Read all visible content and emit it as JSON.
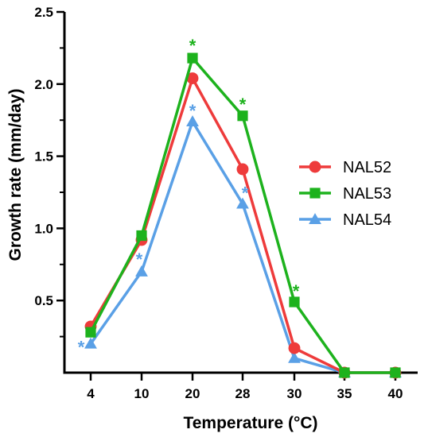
{
  "chart_data": {
    "type": "line",
    "xlabel": "Temperature (°C)",
    "ylabel": "Growth rate (mm/day)",
    "categories": [
      "4",
      "10",
      "20",
      "28",
      "30",
      "35",
      "40"
    ],
    "ylim": [
      0,
      2.5
    ],
    "yticks": [
      "0.5",
      "1.0",
      "1.5",
      "2.0",
      "2.5"
    ],
    "legend_position": "right",
    "grid": false,
    "series": [
      {
        "name": "NAL52",
        "marker": "circle",
        "color": "#ee3b3b",
        "values": [
          0.32,
          0.92,
          2.04,
          1.41,
          0.17,
          0.0,
          0.0
        ]
      },
      {
        "name": "NAL53",
        "marker": "square",
        "color": "#1db21d",
        "values": [
          0.28,
          0.95,
          2.18,
          1.78,
          0.49,
          0.0,
          0.0
        ]
      },
      {
        "name": "NAL54",
        "marker": "triangle",
        "color": "#5aa0e6",
        "values": [
          0.2,
          0.7,
          1.74,
          1.17,
          0.1,
          0.0,
          0.0
        ]
      }
    ],
    "annotations": [
      {
        "text": "*",
        "series": "NAL53",
        "category": "20"
      },
      {
        "text": "*",
        "series": "NAL53",
        "category": "28"
      },
      {
        "text": "*",
        "series": "NAL53",
        "category": "30"
      },
      {
        "text": "*",
        "series": "NAL54",
        "category": "4"
      },
      {
        "text": "*",
        "series": "NAL54",
        "category": "10"
      },
      {
        "text": "*",
        "series": "NAL54",
        "category": "20"
      },
      {
        "text": "*",
        "series": "NAL54",
        "category": "28"
      }
    ]
  }
}
